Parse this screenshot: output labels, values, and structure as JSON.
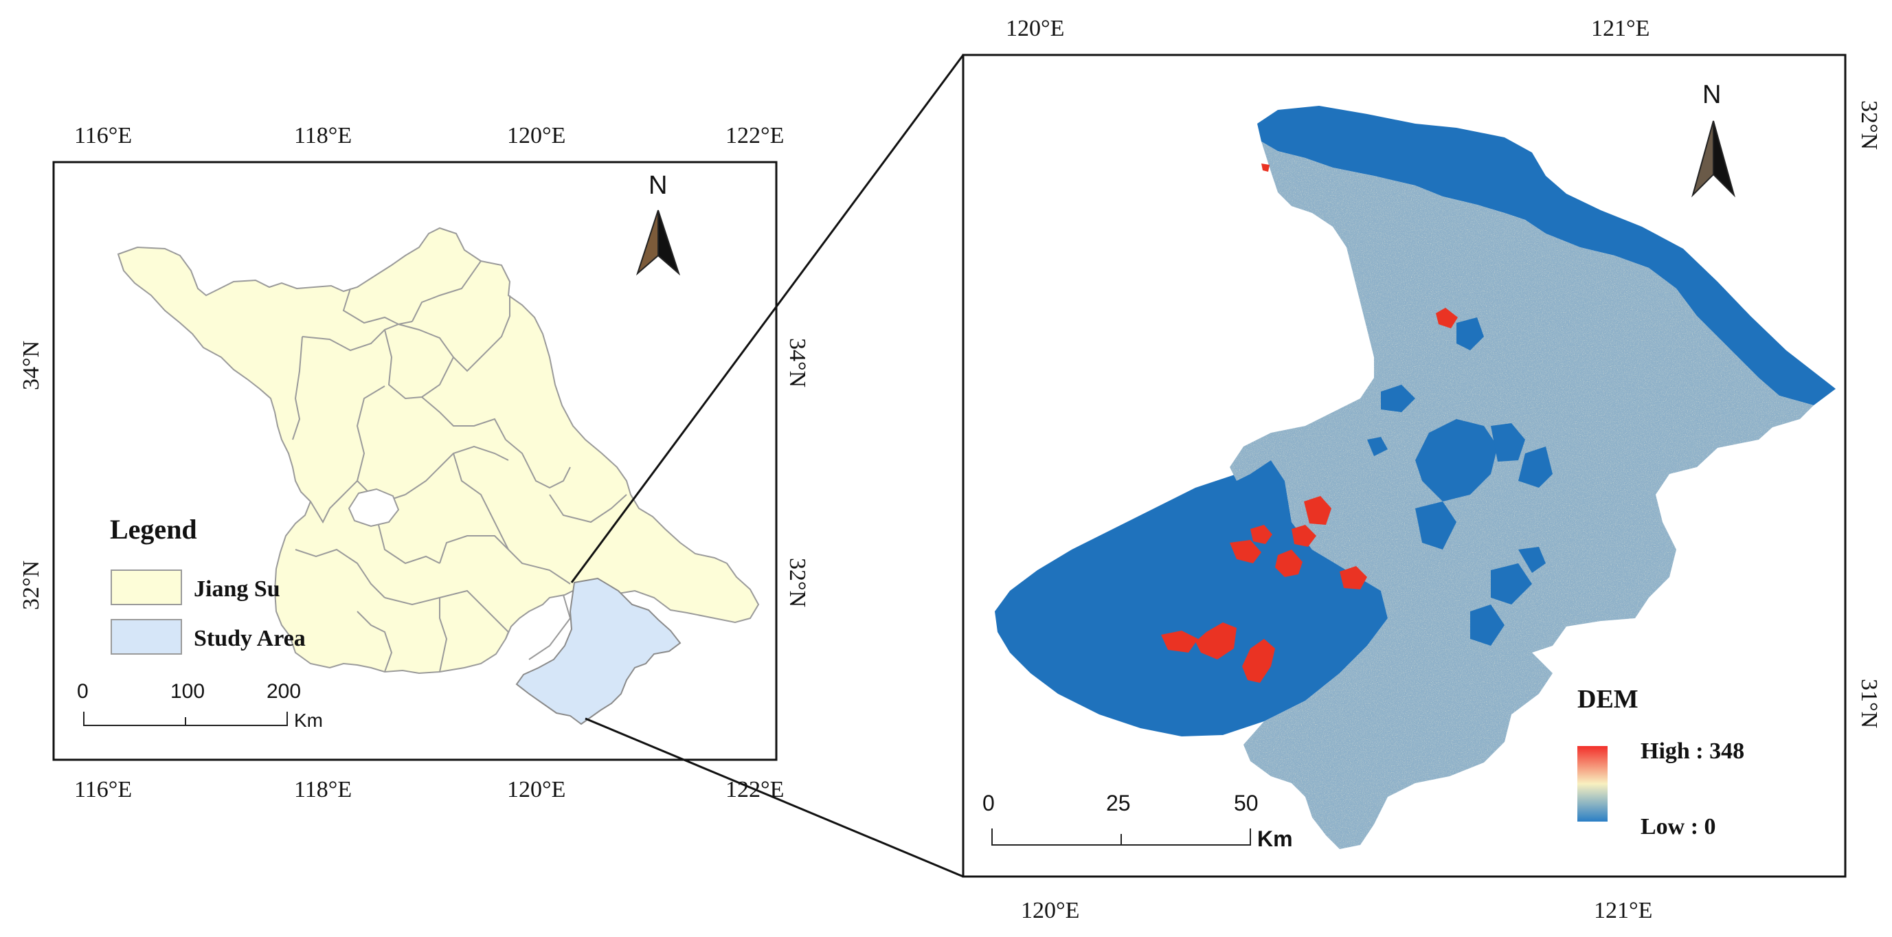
{
  "left_map": {
    "top_ticks": [
      "116°E",
      "118°E",
      "120°E",
      "122°E"
    ],
    "bottom_ticks": [
      "116°E",
      "118°E",
      "120°E",
      "122°E"
    ],
    "left_ticks": [
      "34°N",
      "32°N"
    ],
    "right_ticks": [
      "34°N",
      "32°N"
    ],
    "north_label": "N",
    "legend": {
      "title": "Legend",
      "items": [
        {
          "label": "Jiang Su",
          "color": "#fdfdd8"
        },
        {
          "label": "Study Area",
          "color": "#d6e6f8"
        }
      ]
    },
    "scale": {
      "ticks": [
        "0",
        "100",
        "200"
      ],
      "unit": "Km"
    }
  },
  "right_map": {
    "top_ticks": [
      "120°E",
      "121°E"
    ],
    "bottom_ticks": [
      "120°E",
      "121°E"
    ],
    "right_ticks": [
      "32°N",
      "31°N"
    ],
    "north_label": "N",
    "dem_legend": {
      "title": "DEM",
      "high_label": "High : 348",
      "low_label": "Low : 0",
      "colors": [
        "#f22f2a",
        "#f8f0c0",
        "#2a7ec5"
      ]
    },
    "scale": {
      "ticks": [
        "0",
        "25",
        "50"
      ],
      "unit": "Km"
    },
    "colors": {
      "water": "#1f72bc",
      "land": "#8fb1c9",
      "high": "#ea3323",
      "mid": "#efe2a8"
    }
  }
}
